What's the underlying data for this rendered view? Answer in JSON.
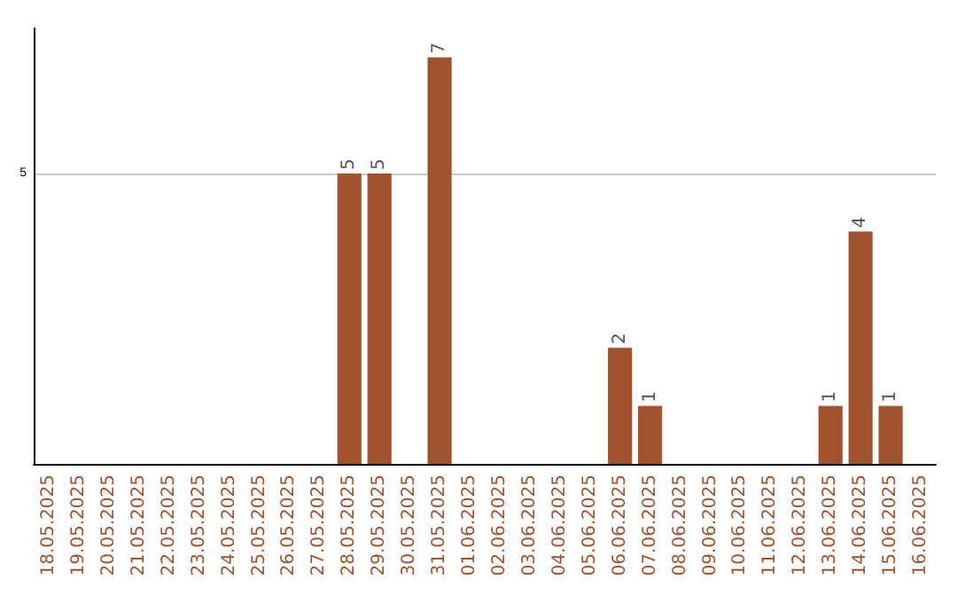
{
  "chart_data": {
    "type": "bar",
    "categories": [
      "18.05.2025",
      "19.05.2025",
      "20.05.2025",
      "21.05.2025",
      "22.05.2025",
      "23.05.2025",
      "24.05.2025",
      "25.05.2025",
      "26.05.2025",
      "27.05.2025",
      "28.05.2025",
      "29.05.2025",
      "30.05.2025",
      "31.05.2025",
      "01.06.2025",
      "02.06.2025",
      "03.06.2025",
      "04.06.2025",
      "05.06.2025",
      "06.06.2025",
      "07.06.2025",
      "08.06.2025",
      "09.06.2025",
      "10.06.2025",
      "11.06.2025",
      "12.06.2025",
      "13.06.2025",
      "14.06.2025",
      "15.06.2025",
      "16.06.2025"
    ],
    "values": [
      0,
      0,
      0,
      0,
      0,
      0,
      0,
      0,
      0,
      0,
      5,
      5,
      0,
      7,
      0,
      0,
      0,
      0,
      0,
      2,
      1,
      0,
      0,
      0,
      0,
      0,
      1,
      4,
      1,
      0
    ],
    "value_labels": [
      null,
      null,
      null,
      null,
      null,
      null,
      null,
      null,
      null,
      null,
      "5",
      "5",
      null,
      "7",
      null,
      null,
      null,
      null,
      null,
      "2",
      "1",
      null,
      null,
      null,
      null,
      null,
      "1",
      "4",
      "1",
      null
    ],
    "color": "#a0522d",
    "ylim": [
      0,
      7.5
    ],
    "yticks": [
      5
    ],
    "grid": "y"
  }
}
